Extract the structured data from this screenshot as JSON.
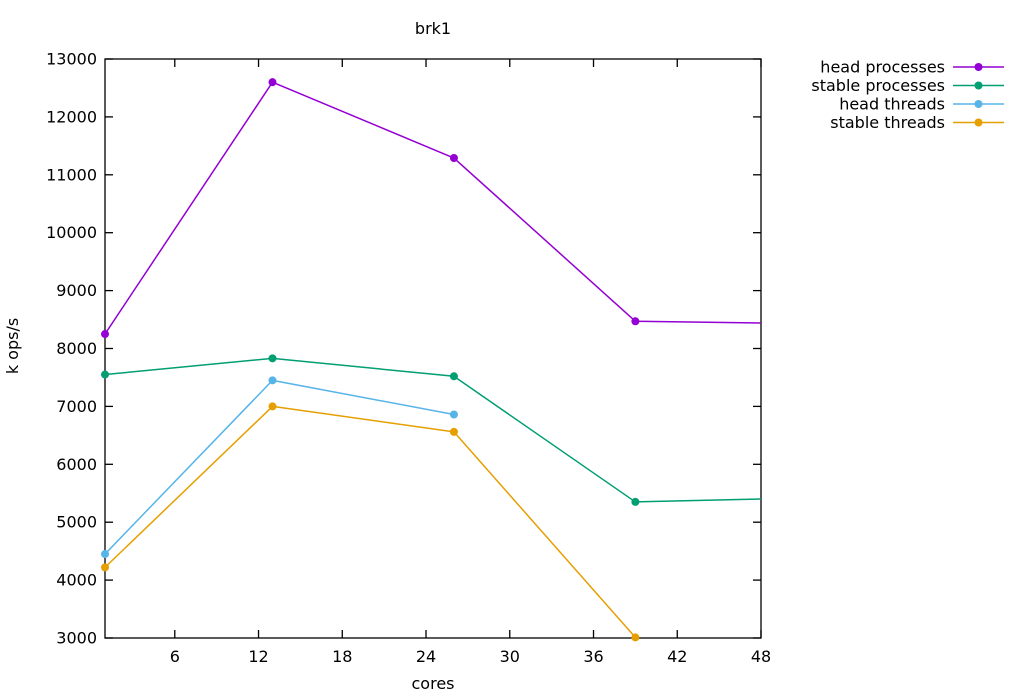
{
  "chart_data": {
    "type": "line",
    "title": "brk1",
    "xlabel": "cores",
    "ylabel": "k ops/s",
    "xlim": [
      1,
      48
    ],
    "ylim": [
      3000,
      13000
    ],
    "x_ticks": [
      6,
      12,
      18,
      24,
      30,
      36,
      42,
      48
    ],
    "y_ticks": [
      3000,
      4000,
      5000,
      6000,
      7000,
      8000,
      9000,
      10000,
      11000,
      12000,
      13000
    ],
    "grid": false,
    "legend_position": "outside-top-right",
    "text_color": "#000000",
    "border_color": "#000000",
    "series": [
      {
        "name": "head processes",
        "color": "#9400d3",
        "points": [
          {
            "x": 1,
            "y": 8250,
            "marker": true
          },
          {
            "x": 13,
            "y": 12600,
            "marker": true
          },
          {
            "x": 26,
            "y": 11290,
            "marker": true
          },
          {
            "x": 39,
            "y": 8470,
            "marker": true
          },
          {
            "x": 48,
            "y": 8440,
            "marker": false
          }
        ]
      },
      {
        "name": "stable processes",
        "color": "#009e73",
        "points": [
          {
            "x": 1,
            "y": 7550,
            "marker": true
          },
          {
            "x": 13,
            "y": 7830,
            "marker": true
          },
          {
            "x": 26,
            "y": 7520,
            "marker": true
          },
          {
            "x": 39,
            "y": 5350,
            "marker": true
          },
          {
            "x": 48,
            "y": 5400,
            "marker": false
          }
        ]
      },
      {
        "name": "head threads",
        "color": "#56b4e9",
        "points": [
          {
            "x": 1,
            "y": 4450,
            "marker": true
          },
          {
            "x": 13,
            "y": 7450,
            "marker": true
          },
          {
            "x": 26,
            "y": 6860,
            "marker": true
          }
        ]
      },
      {
        "name": "stable threads",
        "color": "#e69f00",
        "points": [
          {
            "x": 1,
            "y": 4220,
            "marker": true
          },
          {
            "x": 13,
            "y": 7000,
            "marker": true
          },
          {
            "x": 26,
            "y": 6560,
            "marker": true
          },
          {
            "x": 39,
            "y": 3010,
            "marker": true
          }
        ]
      }
    ]
  }
}
